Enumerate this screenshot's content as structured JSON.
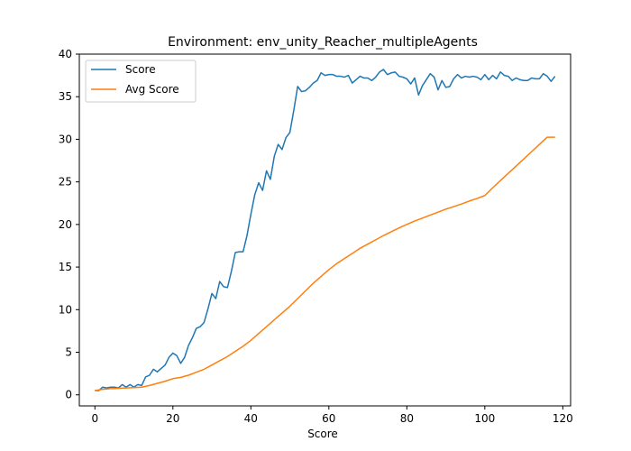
{
  "chart_data": {
    "type": "line",
    "title": "Environment: env_unity_Reacher_multipleAgents",
    "xlabel": "Score",
    "ylabel": "",
    "xlim": [
      -4,
      122
    ],
    "ylim": [
      -1.3,
      40
    ],
    "xticks": [
      0,
      20,
      40,
      60,
      80,
      100,
      120
    ],
    "yticks": [
      0,
      5,
      10,
      15,
      20,
      25,
      30,
      35,
      40
    ],
    "legend_position": "top-left",
    "grid": false,
    "series": [
      {
        "name": "Score",
        "color": "#1f77b4",
        "x": [
          0,
          1,
          2,
          3,
          4,
          5,
          6,
          7,
          8,
          9,
          10,
          11,
          12,
          13,
          14,
          15,
          16,
          17,
          18,
          19,
          20,
          21,
          22,
          23,
          24,
          25,
          26,
          27,
          28,
          29,
          30,
          31,
          32,
          33,
          34,
          35,
          36,
          37,
          38,
          39,
          40,
          41,
          42,
          43,
          44,
          45,
          46,
          47,
          48,
          49,
          50,
          51,
          52,
          53,
          54,
          55,
          56,
          57,
          58,
          59,
          60,
          61,
          62,
          63,
          64,
          65,
          66,
          67,
          68,
          69,
          70,
          71,
          72,
          73,
          74,
          75,
          76,
          77,
          78,
          79,
          80,
          81,
          82,
          83,
          84,
          85,
          86,
          87,
          88,
          89,
          90,
          91,
          92,
          93,
          94,
          95,
          96,
          97,
          98,
          99,
          100,
          101,
          102,
          103,
          104,
          105,
          106,
          107,
          108,
          109,
          110,
          111,
          112,
          113,
          114,
          115,
          116,
          117,
          118
        ],
        "values": [
          0.5,
          0.5,
          0.9,
          0.8,
          0.9,
          0.9,
          0.8,
          1.2,
          0.9,
          1.2,
          0.9,
          1.2,
          1.1,
          2.1,
          2.3,
          3.0,
          2.7,
          3.1,
          3.5,
          4.4,
          4.9,
          4.6,
          3.7,
          4.4,
          5.8,
          6.7,
          7.8,
          8.0,
          8.5,
          10.1,
          11.9,
          11.3,
          13.3,
          12.7,
          12.6,
          14.5,
          16.7,
          16.8,
          16.8,
          18.7,
          21.2,
          23.5,
          24.9,
          24.0,
          26.3,
          25.3,
          28.0,
          29.4,
          28.8,
          30.2,
          30.8,
          33.4,
          36.2,
          35.6,
          35.7,
          36.1,
          36.6,
          36.9,
          37.8,
          37.5,
          37.6,
          37.6,
          37.4,
          37.4,
          37.3,
          37.5,
          36.6,
          37.0,
          37.4,
          37.2,
          37.2,
          36.9,
          37.3,
          37.9,
          38.2,
          37.6,
          37.8,
          37.9,
          37.4,
          37.3,
          37.1,
          36.5,
          37.2,
          35.2,
          36.3,
          37.0,
          37.7,
          37.3,
          35.8,
          36.9,
          36.1,
          36.2,
          37.1,
          37.6,
          37.2,
          37.4,
          37.3,
          37.4,
          37.3,
          37.0,
          37.6,
          37.0,
          37.5,
          37.1,
          37.9,
          37.5,
          37.4,
          36.9,
          37.2,
          37.0,
          36.9,
          36.9,
          37.2,
          37.1,
          37.1,
          37.7,
          37.4,
          36.8,
          37.4
        ]
      },
      {
        "name": "Avg Score",
        "color": "#ff7f0e",
        "x": [
          0,
          2,
          4,
          6,
          8,
          10,
          12,
          14,
          16,
          18,
          20,
          22,
          24,
          26,
          28,
          30,
          32,
          34,
          36,
          38,
          40,
          42,
          44,
          46,
          48,
          50,
          52,
          54,
          56,
          58,
          60,
          62,
          64,
          66,
          68,
          70,
          72,
          74,
          76,
          78,
          80,
          82,
          84,
          86,
          88,
          90,
          92,
          94,
          96,
          98,
          100,
          102,
          104,
          106,
          108,
          110,
          112,
          114,
          116,
          118
        ],
        "values": [
          0.5,
          0.65,
          0.72,
          0.76,
          0.8,
          0.84,
          0.9,
          1.1,
          1.35,
          1.6,
          1.9,
          2.05,
          2.3,
          2.65,
          3.0,
          3.5,
          4.0,
          4.5,
          5.1,
          5.7,
          6.4,
          7.2,
          8.0,
          8.8,
          9.6,
          10.4,
          11.3,
          12.2,
          13.1,
          13.9,
          14.7,
          15.4,
          16.0,
          16.6,
          17.2,
          17.7,
          18.2,
          18.7,
          19.15,
          19.6,
          20.0,
          20.4,
          20.75,
          21.1,
          21.45,
          21.8,
          22.1,
          22.4,
          22.75,
          23.05,
          23.4,
          24.3,
          25.15,
          26.0,
          26.85,
          27.7,
          28.55,
          29.4,
          30.25,
          30.25
        ]
      }
    ]
  }
}
